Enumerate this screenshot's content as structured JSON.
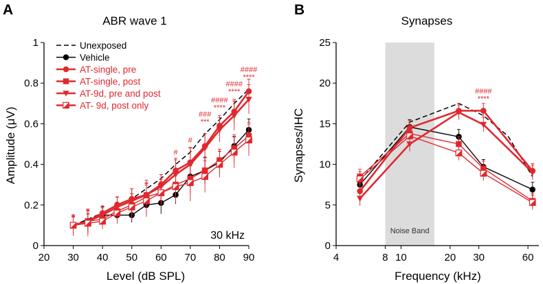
{
  "colors": {
    "black": "#000000",
    "red": "#e0282e",
    "band": "#dcdcdc"
  },
  "chart_data": [
    {
      "panel": "A",
      "type": "line",
      "title": "ABR wave 1",
      "xlabel": "Level (dB SPL)",
      "ylabel": "Amplitude (μV)",
      "inset_label": "30 kHz",
      "xlim": [
        20,
        90
      ],
      "ylim": [
        0,
        1
      ],
      "xticks": [
        20,
        30,
        40,
        50,
        60,
        70,
        80,
        90
      ],
      "yticks": [
        0,
        0.2,
        0.4,
        0.6,
        0.8,
        1
      ],
      "ytick_labels": [
        "0",
        "0.2",
        "0.4",
        "0.6",
        "0.8",
        "1"
      ],
      "legend_position": "top-left",
      "series": [
        {
          "name": "Unexposed",
          "style": "dashed",
          "marker": "none",
          "color": "#000000",
          "x": [
            30,
            35,
            40,
            45,
            50,
            55,
            60,
            65,
            70,
            75,
            80,
            85,
            90
          ],
          "y": [
            0.1,
            0.13,
            0.16,
            0.2,
            0.23,
            0.28,
            0.33,
            0.4,
            0.46,
            0.55,
            0.62,
            0.7,
            0.77
          ]
        },
        {
          "name": "Vehicle",
          "style": "solid",
          "marker": "circle",
          "color": "#000000",
          "x": [
            35,
            40,
            45,
            50,
            55,
            60,
            65,
            70,
            75,
            80,
            85,
            90
          ],
          "y": [
            0.12,
            0.15,
            0.15,
            0.15,
            0.2,
            0.21,
            0.25,
            0.34,
            0.37,
            0.41,
            0.49,
            0.57
          ]
        },
        {
          "name": "AT-single, pre",
          "style": "solid",
          "marker": "circle",
          "color": "#e0282e",
          "x": [
            30,
            35,
            40,
            45,
            50,
            55,
            60,
            65,
            70,
            75,
            80,
            85,
            90
          ],
          "y": [
            0.1,
            0.12,
            0.16,
            0.2,
            0.23,
            0.25,
            0.3,
            0.37,
            0.41,
            0.49,
            0.59,
            0.66,
            0.76
          ]
        },
        {
          "name": "AT-single, post",
          "style": "solid",
          "marker": "square",
          "color": "#e0282e",
          "x": [
            30,
            35,
            40,
            45,
            50,
            55,
            60,
            65,
            70,
            75,
            80,
            85,
            90
          ],
          "y": [
            0.1,
            0.12,
            0.13,
            0.17,
            0.2,
            0.24,
            0.26,
            0.3,
            0.33,
            0.37,
            0.42,
            0.48,
            0.54
          ]
        },
        {
          "name": "AT-9d, pre and post",
          "style": "solid",
          "marker": "triangle-down",
          "color": "#e0282e",
          "x": [
            30,
            35,
            40,
            45,
            50,
            55,
            60,
            65,
            70,
            75,
            80,
            85,
            90
          ],
          "y": [
            0.1,
            0.12,
            0.15,
            0.19,
            0.22,
            0.25,
            0.29,
            0.35,
            0.4,
            0.48,
            0.57,
            0.64,
            0.72
          ]
        },
        {
          "name": "AT- 9d, post only",
          "style": "solid",
          "marker": "half-square",
          "color": "#e0282e",
          "x": [
            30,
            35,
            40,
            45,
            50,
            55,
            60,
            65,
            70,
            75,
            80,
            85,
            90
          ],
          "y": [
            0.1,
            0.11,
            0.12,
            0.16,
            0.19,
            0.22,
            0.26,
            0.29,
            0.31,
            0.34,
            0.4,
            0.46,
            0.52
          ]
        }
      ],
      "annotations": [
        {
          "x": 65,
          "lines": [
            "#"
          ]
        },
        {
          "x": 70,
          "lines": [
            "#"
          ]
        },
        {
          "x": 75,
          "lines": [
            "###",
            "***"
          ]
        },
        {
          "x": 80,
          "lines": [
            "####",
            "****"
          ]
        },
        {
          "x": 85,
          "lines": [
            "####",
            "****"
          ]
        },
        {
          "x": 90,
          "lines": [
            "####",
            "****"
          ]
        }
      ]
    },
    {
      "panel": "B",
      "type": "line",
      "title": "Synapses",
      "xlabel": "Frequency (kHz)",
      "ylabel": "Synapses/IHC",
      "xscale": "log",
      "xlim": [
        4,
        70
      ],
      "ylim": [
        0,
        25
      ],
      "xticks": [
        4,
        8,
        10,
        20,
        30,
        60
      ],
      "yticks": [
        0,
        5,
        10,
        15,
        20,
        25
      ],
      "shaded_band": {
        "x": [
          8,
          16
        ],
        "label": "Noise Band"
      },
      "series": [
        {
          "name": "Unexposed",
          "style": "dashed",
          "marker": "none",
          "color": "#000000",
          "x": [
            5.6,
            11.3,
            22.6,
            32,
            45.2,
            64
          ],
          "y": [
            8.0,
            15.2,
            17.5,
            16.0,
            13.5,
            8.5
          ]
        },
        {
          "name": "Vehicle",
          "style": "solid",
          "marker": "circle",
          "color": "#000000",
          "x": [
            5.6,
            11.3,
            22.6,
            32,
            64
          ],
          "y": [
            7.5,
            14.6,
            13.4,
            9.7,
            6.9
          ]
        },
        {
          "name": "AT-single, pre",
          "style": "solid",
          "marker": "circle",
          "color": "#e0282e",
          "x": [
            5.6,
            11.3,
            22.6,
            32,
            64
          ],
          "y": [
            6.7,
            14.5,
            16.6,
            16.6,
            9.2
          ]
        },
        {
          "name": "AT-single, post",
          "style": "solid",
          "marker": "square",
          "color": "#e0282e",
          "x": [
            5.6,
            11.3,
            22.6,
            32,
            64
          ],
          "y": [
            8.5,
            13.8,
            12.5,
            9.5,
            5.5
          ]
        },
        {
          "name": "AT-9d, pre and post",
          "style": "solid",
          "marker": "triangle-down",
          "color": "#e0282e",
          "x": [
            5.6,
            11.3,
            22.6,
            32,
            64
          ],
          "y": [
            5.8,
            12.5,
            16.4,
            14.9,
            9.0
          ]
        },
        {
          "name": "AT- 9d, post only",
          "style": "solid",
          "marker": "half-square",
          "color": "#e0282e",
          "x": [
            5.6,
            11.3,
            22.6,
            32,
            64
          ],
          "y": [
            8.2,
            13.5,
            11.4,
            8.9,
            5.3
          ]
        }
      ],
      "annotations": [
        {
          "x": 32,
          "lines": [
            "####",
            "****"
          ]
        }
      ]
    }
  ]
}
